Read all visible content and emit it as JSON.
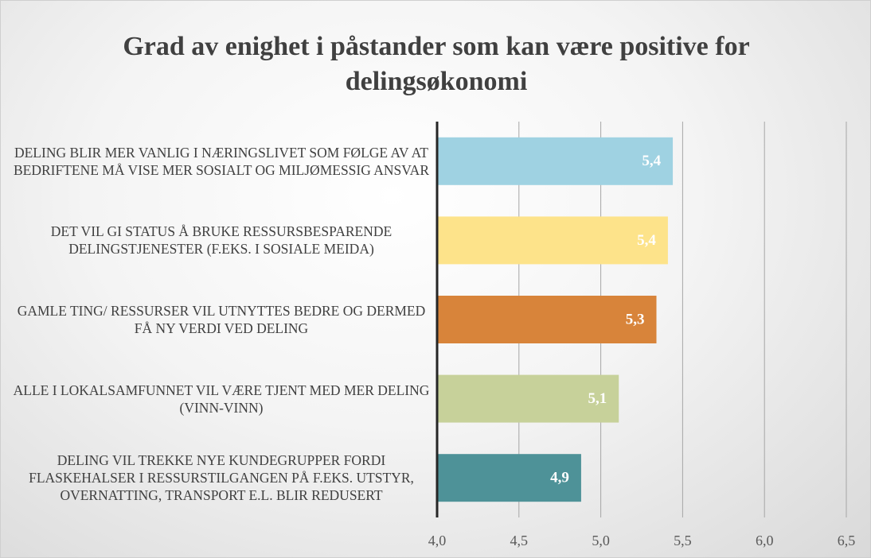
{
  "chart_data": {
    "type": "bar",
    "orientation": "horizontal",
    "title": "Grad av enighet i påstander som kan være positive for delingsøkonomi",
    "categories": [
      "DELING BLIR MER VANLIG I NÆRINGSLIVET SOM FØLGE AV AT BEDRIFTENE MÅ VISE MER SOSIALT OG MILJØMESSIG ANSVAR",
      "DET VIL GI STATUS Å BRUKE RESSURSBESPARENDE DELINGSTJENESTER (F.EKS. I SOSIALE MEIDA)",
      "GAMLE TING/ RESSURSER VIL UTNYTTES BEDRE OG DERMED FÅ NY VERDI VED DELING",
      "ALLE I LOKALSAMFUNNET VIL VÆRE TJENT MED MER DELING (VINN-VINN)",
      "DELING VIL TREKKE NYE KUNDEGRUPPER FORDI FLASKEHALSER I RESSURSTILGANGEN PÅ F.EKS. UTSTYR, OVERNATTING, TRANSPORT E.L. BLIR REDUSERT"
    ],
    "values": [
      5.44,
      5.41,
      5.34,
      5.11,
      4.88
    ],
    "value_labels": [
      "5,4",
      "5,4",
      "5,3",
      "5,1",
      "4,9"
    ],
    "colors": [
      "#9fd2e2",
      "#fde38a",
      "#d8843a",
      "#c7d19a",
      "#4e9298"
    ],
    "xlim": [
      4.0,
      6.5
    ],
    "xticks": [
      {
        "value": 4.0,
        "label": "4,0"
      },
      {
        "value": 4.5,
        "label": "4,5"
      },
      {
        "value": 5.0,
        "label": "5,0"
      },
      {
        "value": 5.5,
        "label": "5,5"
      },
      {
        "value": 6.0,
        "label": "6,0"
      },
      {
        "value": 6.5,
        "label": "6,5"
      }
    ],
    "grid": true
  }
}
